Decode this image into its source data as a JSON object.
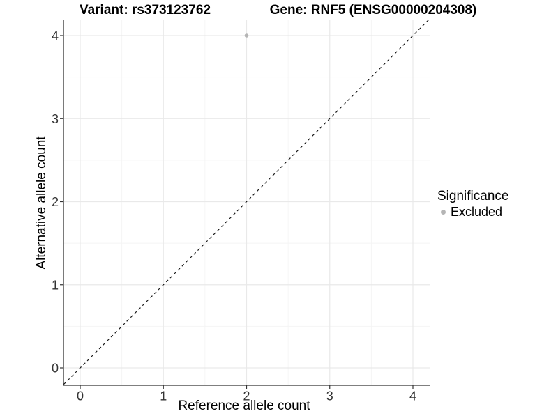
{
  "chart_data": {
    "type": "scatter",
    "titles": {
      "left": "Variant: rs373123762",
      "right": "Gene: RNF5 (ENSG00000204308)"
    },
    "xlabel": "Reference allele count",
    "ylabel": "Alternative allele count",
    "xlim": [
      -0.2,
      4.2
    ],
    "ylim": [
      -0.2,
      4.2
    ],
    "xticks": [
      0,
      1,
      2,
      3,
      4
    ],
    "yticks": [
      0,
      1,
      2,
      3,
      4
    ],
    "minor_gridlines": [
      0.5,
      1.5,
      2.5,
      3.5
    ],
    "grid": {
      "on": true,
      "major_color": "#e9e9e9",
      "minor_color": "#f4f4f4"
    },
    "identity_line": {
      "style": "dashed",
      "color": "#1a1a1a",
      "from": [
        -0.2,
        -0.2
      ],
      "to": [
        4.2,
        4.2
      ]
    },
    "series": [
      {
        "name": "Excluded",
        "color": "#b5b5b5",
        "points": [
          {
            "x": 2,
            "y": 4
          }
        ]
      }
    ],
    "legend": {
      "title": "Significance",
      "position": "right",
      "entries": [
        {
          "label": "Excluded",
          "color": "#b5b5b5"
        }
      ]
    },
    "axis_color": "#333333",
    "tick_label_color": "#333333"
  }
}
